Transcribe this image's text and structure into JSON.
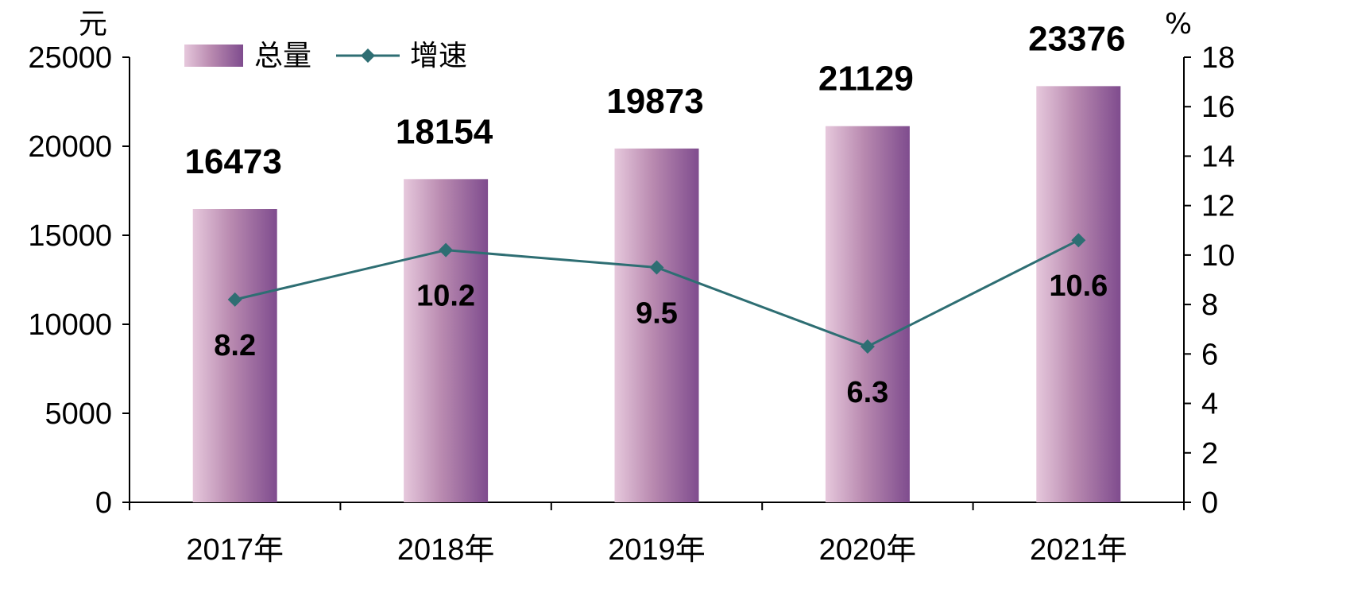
{
  "chart_data": {
    "type": "bar",
    "title": "",
    "categories": [
      "2017年",
      "2018年",
      "2019年",
      "2020年",
      "2021年"
    ],
    "left_axis": {
      "unit": "元",
      "range": [
        0,
        25000
      ],
      "ticks": [
        "0",
        "5000",
        "10000",
        "15000",
        "20000",
        "25000"
      ]
    },
    "right_axis": {
      "unit": "%",
      "range": [
        0,
        18
      ],
      "ticks": [
        "0",
        "2",
        "4",
        "6",
        "8",
        "10",
        "12",
        "14",
        "16",
        "18"
      ]
    },
    "series": [
      {
        "name": "总量",
        "type": "bar",
        "axis": "left",
        "values": [
          16473,
          18154,
          19873,
          21129,
          23376
        ],
        "labels": [
          "16473",
          "18154",
          "19873",
          "21129",
          "23376"
        ]
      },
      {
        "name": "增速",
        "type": "line",
        "axis": "right",
        "values": [
          8.2,
          10.2,
          9.5,
          6.3,
          10.6
        ],
        "labels": [
          "8.2",
          "10.2",
          "9.5",
          "6.3",
          "10.6"
        ]
      }
    ],
    "legend_position": "top-left",
    "grid": false,
    "colors": {
      "bar_light": "#e6c8dc",
      "bar_mid": "#b98ab0",
      "bar_dark": "#7f4c8e",
      "line": "#2e6e73",
      "axis": "#000000"
    }
  }
}
